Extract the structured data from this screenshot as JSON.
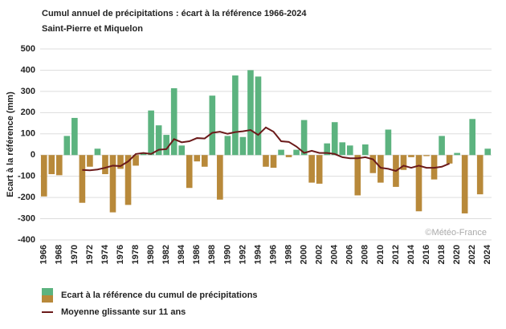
{
  "chart_data": {
    "type": "bar",
    "title": "Cumul annuel de précipitations : écart à la référence 1966-2024",
    "subtitle": "Saint-Pierre et Miquelon",
    "y_label": "Ecart à la référence (mm)",
    "watermark": "©Météo-France",
    "categories": [
      "1966",
      null,
      "1968",
      null,
      "1970",
      null,
      "1972",
      null,
      "1974",
      null,
      "1976",
      null,
      "1978",
      null,
      "1980",
      null,
      "1982",
      null,
      "1984",
      null,
      "1986",
      null,
      "1988",
      null,
      "1990",
      null,
      "1992",
      null,
      "1994",
      null,
      "1996",
      null,
      "1998",
      null,
      "2000",
      null,
      "2002",
      null,
      "2004",
      null,
      "2006",
      null,
      "2008",
      null,
      "2010",
      null,
      "2012",
      null,
      "2014",
      null,
      "2016",
      null,
      "2018",
      null,
      "2020",
      null,
      "2022",
      null,
      "2024"
    ],
    "series": [
      {
        "name": "Ecart à la référence du cumul de précipitations",
        "positive_color": "#5cb37f",
        "negative_color": "#b8893a",
        "values": [
          -195,
          -90,
          -95,
          90,
          175,
          -225,
          -55,
          30,
          -90,
          -270,
          -65,
          -235,
          -50,
          10,
          210,
          140,
          95,
          315,
          45,
          -155,
          -30,
          -55,
          280,
          -210,
          90,
          375,
          85,
          400,
          370,
          -55,
          -60,
          25,
          -10,
          25,
          165,
          -130,
          -135,
          55,
          155,
          60,
          45,
          -190,
          50,
          -85,
          -130,
          120,
          -150,
          -70,
          -10,
          -265,
          -5,
          -115,
          90,
          -40,
          10,
          -275,
          170,
          -185,
          30
        ]
      },
      {
        "name": "Moyenne glissante sur 11 ans",
        "type": "line",
        "color": "#6b1a1a",
        "values": [
          null,
          null,
          null,
          null,
          null,
          -70,
          -72,
          -68,
          -60,
          -50,
          -52,
          -30,
          5,
          10,
          5,
          25,
          28,
          75,
          60,
          65,
          80,
          78,
          105,
          110,
          100,
          108,
          112,
          118,
          95,
          130,
          110,
          65,
          62,
          40,
          10,
          20,
          10,
          10,
          5,
          -10,
          -15,
          -15,
          -10,
          -20,
          -60,
          -65,
          -75,
          -50,
          -60,
          -50,
          -60,
          -60,
          -55,
          -40,
          null,
          null,
          null,
          null,
          null
        ]
      }
    ],
    "ylim": [
      -400,
      500
    ],
    "yticks": [
      -400,
      -300,
      -200,
      -100,
      0,
      100,
      200,
      300,
      400,
      500
    ],
    "grid": true
  }
}
